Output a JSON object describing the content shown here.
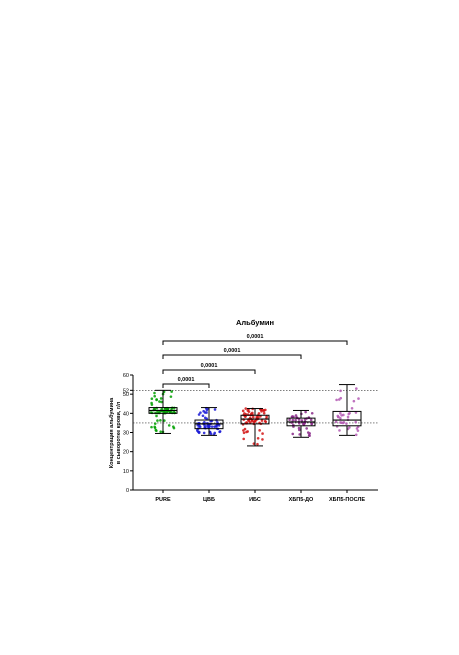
{
  "chart_data": {
    "type": "box",
    "title": "Альбумин",
    "xlabel": "",
    "ylabel_line1": "Концентрация альбумина",
    "ylabel_line2": "в сыворотке крови, г/л",
    "ylim": [
      0,
      60
    ],
    "yticks": [
      0,
      10,
      20,
      30,
      40,
      50,
      60
    ],
    "extra_ytick": 52,
    "reference_lines": [
      52,
      35
    ],
    "grid": false,
    "categories": [
      "PURE",
      "ЦВБ",
      "ИБС",
      "ХБП5-ДО",
      "ХБП5-ПОСЛЕ"
    ],
    "series": [
      {
        "color": "#00a000",
        "min": 29.5,
        "q1": 40.0,
        "median": 41.5,
        "q3": 43.0,
        "max": 52.0,
        "n_points": 70
      },
      {
        "color": "#1a1ad6",
        "min": 28.5,
        "q1": 32.0,
        "median": 34.5,
        "q3": 36.5,
        "max": 43.0,
        "n_points": 60
      },
      {
        "color": "#d21414",
        "min": 23.0,
        "q1": 34.5,
        "median": 37.0,
        "q3": 39.0,
        "max": 42.5,
        "n_points": 70
      },
      {
        "color": "#8a2a8a",
        "min": 27.5,
        "q1": 33.5,
        "median": 35.5,
        "q3": 37.5,
        "max": 41.5,
        "n_points": 40
      },
      {
        "color": "#b45ab4",
        "min": 28.5,
        "q1": 33.5,
        "median": 36.5,
        "q3": 41.0,
        "max": 55.0,
        "n_points": 35
      }
    ],
    "comparisons": [
      {
        "from": 0,
        "to": 1,
        "label": "0,0001"
      },
      {
        "from": 0,
        "to": 2,
        "label": "0,0001"
      },
      {
        "from": 0,
        "to": 3,
        "label": "0,0001"
      },
      {
        "from": 0,
        "to": 4,
        "label": "0,0001"
      }
    ]
  }
}
